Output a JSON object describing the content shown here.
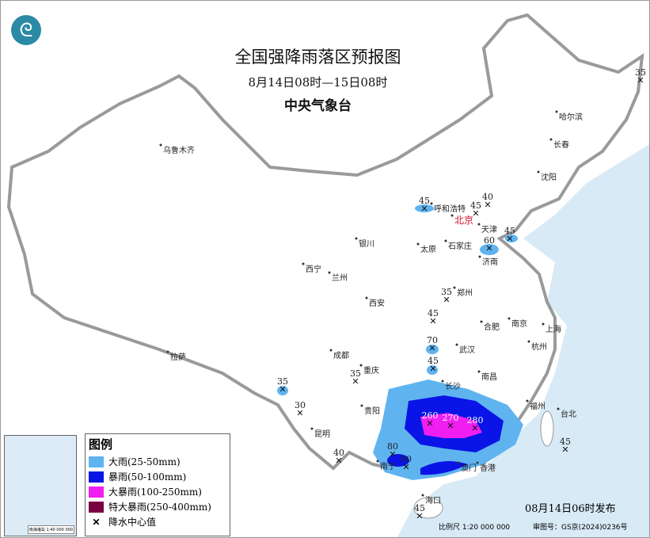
{
  "header": {
    "title": "全国强降雨落区预报图",
    "period": "8月14日08时—15日08时",
    "issuer": "中央气象台",
    "logo_icon": "cma-logo"
  },
  "legend": {
    "title": "图例",
    "items": [
      {
        "label": "大雨(25-50mm)",
        "color": "#5fb4f0"
      },
      {
        "label": "暴雨(50-100mm)",
        "color": "#0a14e6"
      },
      {
        "label": "大暴雨(100-250mm)",
        "color": "#f01ef0"
      },
      {
        "label": "特大暴雨(250-400mm)",
        "color": "#7a0040"
      }
    ],
    "center_label": "降水中心值",
    "center_icon": "x-mark-icon"
  },
  "inset": {
    "caption": "南海诸岛 1:40 000 000"
  },
  "footer": {
    "issued": "08月14日06时发布",
    "scale": "比例尺 1:20 000 000",
    "review": "审图号：GS京(2024)0236号"
  },
  "colors": {
    "sea": "#d8eaf6",
    "land": "#ffffff",
    "border": "#9a9a9a",
    "capital": "#d0102a"
  },
  "cities": [
    "乌鲁木齐",
    "哈尔滨",
    "长春",
    "沈阳",
    "呼和浩特",
    "北京",
    "天津",
    "石家庄",
    "太原",
    "济南",
    "银川",
    "西宁",
    "兰州",
    "郑州",
    "西安",
    "合肥",
    "南京",
    "上海",
    "杭州",
    "武汉",
    "成都",
    "重庆",
    "拉萨",
    "长沙",
    "南昌",
    "福州",
    "台北",
    "贵阳",
    "昆明",
    "南宁",
    "澳门",
    "香港",
    "海口"
  ],
  "rain_centers": [
    "35",
    "45",
    "40",
    "45",
    "45",
    "60",
    "35",
    "45",
    "70",
    "45",
    "35",
    "35",
    "30",
    "40",
    "80",
    "80",
    "260",
    "270",
    "280",
    "45",
    "45"
  ]
}
